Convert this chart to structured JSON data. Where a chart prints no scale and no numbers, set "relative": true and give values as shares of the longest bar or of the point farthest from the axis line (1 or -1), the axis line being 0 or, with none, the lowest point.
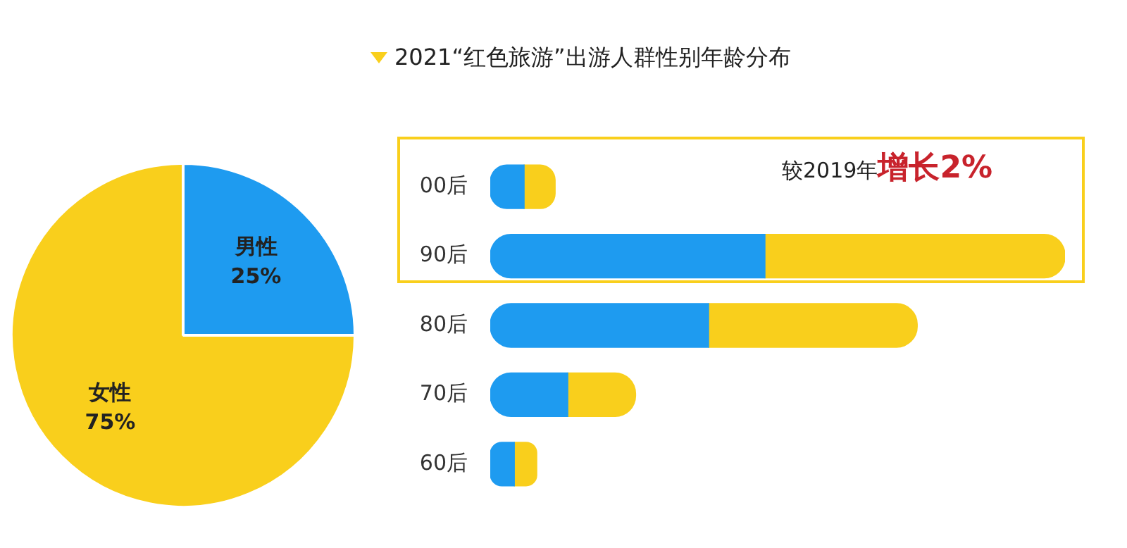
{
  "chart_data": [
    {
      "type": "pie",
      "categories": [
        "男性",
        "女性"
      ],
      "values": [
        25,
        75
      ],
      "colors": [
        "#1e9bf0",
        "#f9cf1c"
      ],
      "value_labels": [
        "25%",
        "75%"
      ],
      "legend": false
    },
    {
      "type": "bar",
      "title": "2021“红色旅游”出游人群性别年龄分布",
      "orientation": "horizontal",
      "stacked": true,
      "relative": true,
      "categories": [
        "00后",
        "90后",
        "80后",
        "70后",
        "60后"
      ],
      "series": [
        {
          "color": "#1e9bf0",
          "values": [
            0.059,
            0.478,
            0.38,
            0.135,
            0.042
          ]
        },
        {
          "color": "#f9cf1c",
          "values": [
            0.054,
            0.522,
            0.363,
            0.118,
            0.039
          ]
        }
      ],
      "annotations": [
        "较2019年",
        "增长2%"
      ],
      "legend": false
    }
  ]
}
